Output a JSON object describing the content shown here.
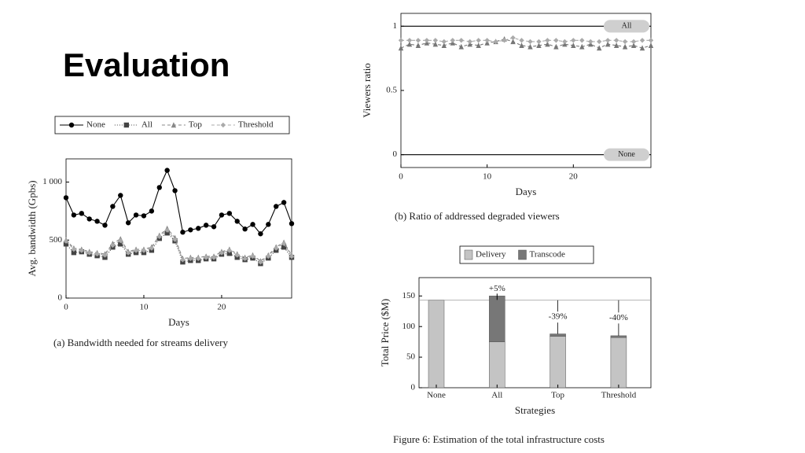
{
  "title": "Evaluation",
  "chart_data": [
    {
      "type": "line",
      "caption": "(a) Bandwidth needed for streams delivery",
      "xlabel": "Days",
      "ylabel": "Avg. bandwidth (Gpbs)",
      "legend": "top",
      "x": [
        0,
        1,
        2,
        3,
        4,
        5,
        6,
        7,
        8,
        9,
        10,
        11,
        12,
        13,
        14,
        15,
        16,
        17,
        18,
        19,
        20,
        21,
        22,
        23,
        24,
        25,
        26,
        27,
        28,
        29
      ],
      "xlim": [
        0,
        29
      ],
      "xticks": [
        0,
        10,
        20
      ],
      "ylim": [
        0,
        1200
      ],
      "yticks": [
        0,
        500,
        {
          "value": 1000,
          "label": "1 000"
        }
      ],
      "series": [
        {
          "name": "None",
          "color": "#000000",
          "marker": "circle",
          "dash": "none",
          "values": [
            865,
            716,
            730,
            682,
            662,
            628,
            790,
            885,
            649,
            716,
            709,
            750,
            953,
            1101,
            926,
            568,
            588,
            601,
            628,
            615,
            716,
            730,
            662,
            595,
            635,
            554,
            635,
            790,
            824,
            642
          ]
        },
        {
          "name": "All",
          "color": "#444444",
          "marker": "square",
          "dash": "1 2",
          "values": [
            466,
            392,
            399,
            378,
            365,
            351,
            439,
            466,
            378,
            392,
            392,
            412,
            514,
            561,
            493,
            311,
            324,
            324,
            338,
            338,
            378,
            385,
            351,
            331,
            345,
            297,
            345,
            412,
            439,
            351
          ]
        },
        {
          "name": "Top",
          "color": "#888888",
          "marker": "triangle",
          "dash": "4 3",
          "values": [
            500,
            430,
            420,
            400,
            390,
            380,
            470,
            510,
            400,
            420,
            420,
            440,
            540,
            600,
            520,
            340,
            350,
            350,
            360,
            360,
            400,
            420,
            380,
            350,
            370,
            320,
            370,
            440,
            480,
            370
          ]
        },
        {
          "name": "Threshold",
          "color": "#aaaaaa",
          "marker": "diamond",
          "dash": "4 3",
          "values": [
            490,
            420,
            410,
            390,
            380,
            370,
            455,
            495,
            390,
            410,
            410,
            430,
            530,
            585,
            505,
            330,
            340,
            340,
            350,
            350,
            390,
            410,
            370,
            340,
            360,
            310,
            360,
            430,
            470,
            360
          ]
        }
      ]
    },
    {
      "type": "line",
      "caption": "(b) Ratio of addressed degraded viewers",
      "xlabel": "Days",
      "ylabel": "Viewers ratio",
      "legend": "inline",
      "x": [
        0,
        1,
        2,
        3,
        4,
        5,
        6,
        7,
        8,
        9,
        10,
        11,
        12,
        13,
        14,
        15,
        16,
        17,
        18,
        19,
        20,
        21,
        22,
        23,
        24,
        25,
        26,
        27,
        28,
        29
      ],
      "xlim": [
        0,
        29
      ],
      "xticks": [
        0,
        10,
        20
      ],
      "ylim": [
        -0.1,
        1.1
      ],
      "yticks": [
        0,
        0.5,
        1
      ],
      "series": [
        {
          "name": "All",
          "color": "#000000",
          "marker": "none",
          "dash": "none",
          "values": [
            1,
            1,
            1,
            1,
            1,
            1,
            1,
            1,
            1,
            1,
            1,
            1,
            1,
            1,
            1,
            1,
            1,
            1,
            1,
            1,
            1,
            1,
            1,
            1,
            1,
            1,
            1,
            1,
            1,
            1
          ]
        },
        {
          "name": "None",
          "color": "#000000",
          "marker": "none",
          "dash": "none",
          "values": [
            0,
            0,
            0,
            0,
            0,
            0,
            0,
            0,
            0,
            0,
            0,
            0,
            0,
            0,
            0,
            0,
            0,
            0,
            0,
            0,
            0,
            0,
            0,
            0,
            0,
            0,
            0,
            0,
            0,
            0
          ]
        },
        {
          "color": "#777777",
          "marker": "triangle",
          "dash": "4 3",
          "values": [
            0.83,
            0.86,
            0.85,
            0.87,
            0.86,
            0.85,
            0.87,
            0.84,
            0.86,
            0.85,
            0.87,
            0.88,
            0.9,
            0.88,
            0.85,
            0.84,
            0.85,
            0.86,
            0.84,
            0.86,
            0.85,
            0.84,
            0.86,
            0.83,
            0.86,
            0.85,
            0.84,
            0.85,
            0.83,
            0.85
          ]
        },
        {
          "color": "#aaaaaa",
          "marker": "diamond",
          "dash": "4 3",
          "values": [
            0.89,
            0.89,
            0.89,
            0.89,
            0.89,
            0.88,
            0.89,
            0.89,
            0.88,
            0.89,
            0.89,
            0.88,
            0.89,
            0.91,
            0.89,
            0.88,
            0.88,
            0.89,
            0.89,
            0.88,
            0.89,
            0.89,
            0.88,
            0.88,
            0.89,
            0.89,
            0.88,
            0.88,
            0.89,
            0.89
          ]
        }
      ]
    },
    {
      "type": "stacked_bar",
      "caption": "Figure 6: Estimation of the total infrastructure costs",
      "xlabel": "Strategies",
      "ylabel": "Total Price ($M)",
      "legend": "top",
      "categories": [
        "None",
        "All",
        "Top",
        "Threshold"
      ],
      "ylim": [
        0,
        180
      ],
      "yticks": [
        0,
        50,
        100,
        150
      ],
      "annotations": [
        null,
        "+5%",
        "-39%",
        "-40%"
      ],
      "series": [
        {
          "name": "Delivery",
          "color": "#c4c4c4",
          "values": [
            143,
            75,
            84,
            82
          ]
        },
        {
          "name": "Transcode",
          "color": "#777777",
          "values": [
            0,
            75,
            4,
            3
          ]
        }
      ]
    }
  ]
}
